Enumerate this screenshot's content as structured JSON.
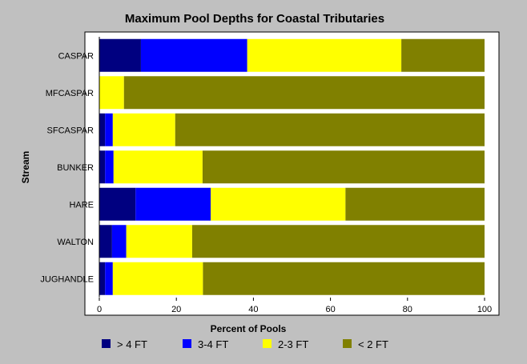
{
  "chart_data": {
    "type": "bar",
    "orientation": "horizontal",
    "stacked": true,
    "title": "Maximum Pool Depths for Coastal Tributaries",
    "xlabel": "Percent of Pools",
    "ylabel": "Stream",
    "xlim": [
      0,
      100
    ],
    "xticks": [
      "0",
      "20",
      "40",
      "60",
      "80",
      "100"
    ],
    "grid": false,
    "legend_position": "bottom",
    "categories": [
      "CASPAR",
      "MFCASPAR",
      "SFCASPAR",
      "BUNKER",
      "HARE",
      "WALTON",
      "JUGHANDLE"
    ],
    "series": [
      {
        "name": "> 4 FT",
        "color": "#000080",
        "values": [
          10.8,
          0.0,
          1.5,
          1.5,
          9.4,
          3.3,
          1.5
        ]
      },
      {
        "name": "3-4 FT",
        "color": "#0000ff",
        "values": [
          27.6,
          0.0,
          2.0,
          2.2,
          19.5,
          3.7,
          2.0
        ]
      },
      {
        "name": "2-3 FT",
        "color": "#ffff00",
        "values": [
          40.0,
          6.4,
          16.2,
          23.1,
          35.0,
          17.1,
          23.4
        ]
      },
      {
        "name": "< 2 FT",
        "color": "#808000",
        "values": [
          21.6,
          93.6,
          80.3,
          73.2,
          36.1,
          75.9,
          73.1
        ]
      }
    ]
  }
}
